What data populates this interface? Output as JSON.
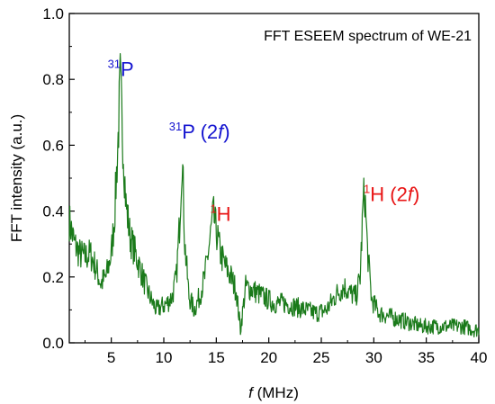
{
  "chart_data": {
    "type": "line",
    "title": "FFT ESEEM spectrum of WE-21",
    "xlabel": {
      "italic": "f",
      "rest": " (MHz)"
    },
    "ylabel": "FFT intensity (a.u.)",
    "xlim": [
      1,
      40
    ],
    "ylim": [
      0,
      1.0
    ],
    "x_ticks": [
      5,
      10,
      15,
      20,
      25,
      30,
      35,
      40
    ],
    "x_tick_labels": [
      "5",
      "10",
      "15",
      "20",
      "25",
      "30",
      "35",
      "40"
    ],
    "y_ticks": [
      0.0,
      0.2,
      0.4,
      0.6,
      0.8,
      1.0
    ],
    "y_tick_labels": [
      "0.0",
      "0.2",
      "0.4",
      "0.6",
      "0.8",
      "1.0"
    ],
    "grid": false,
    "legend": "none",
    "series": [
      {
        "color": "#1a7a1a",
        "baseline": [
          [
            1.0,
            0.37
          ],
          [
            1.5,
            0.3
          ],
          [
            2.0,
            0.27
          ],
          [
            2.5,
            0.26
          ],
          [
            3.0,
            0.27
          ],
          [
            3.5,
            0.23
          ],
          [
            4.0,
            0.18
          ],
          [
            4.5,
            0.2
          ],
          [
            5.0,
            0.27
          ],
          [
            5.3,
            0.38
          ],
          [
            5.6,
            0.58
          ],
          [
            5.85,
            0.79
          ],
          [
            6.1,
            0.62
          ],
          [
            6.4,
            0.42
          ],
          [
            6.8,
            0.32
          ],
          [
            7.3,
            0.27
          ],
          [
            7.8,
            0.22
          ],
          [
            8.3,
            0.17
          ],
          [
            8.8,
            0.13
          ],
          [
            9.3,
            0.1
          ],
          [
            9.8,
            0.11
          ],
          [
            10.3,
            0.12
          ],
          [
            10.8,
            0.14
          ],
          [
            11.2,
            0.2
          ],
          [
            11.5,
            0.36
          ],
          [
            11.75,
            0.58
          ],
          [
            12.0,
            0.3
          ],
          [
            12.4,
            0.14
          ],
          [
            12.9,
            0.1
          ],
          [
            13.4,
            0.14
          ],
          [
            13.9,
            0.2
          ],
          [
            14.3,
            0.29
          ],
          [
            14.7,
            0.39
          ],
          [
            15.0,
            0.34
          ],
          [
            15.4,
            0.27
          ],
          [
            15.9,
            0.23
          ],
          [
            16.4,
            0.2
          ],
          [
            16.9,
            0.16
          ],
          [
            17.3,
            0.04
          ],
          [
            17.8,
            0.17
          ],
          [
            18.5,
            0.16
          ],
          [
            19.5,
            0.14
          ],
          [
            20.5,
            0.12
          ],
          [
            21.5,
            0.12
          ],
          [
            22.5,
            0.11
          ],
          [
            23.5,
            0.1
          ],
          [
            24.5,
            0.09
          ],
          [
            25.5,
            0.1
          ],
          [
            26.5,
            0.15
          ],
          [
            27.2,
            0.17
          ],
          [
            27.8,
            0.15
          ],
          [
            28.3,
            0.14
          ],
          [
            28.7,
            0.2
          ],
          [
            29.0,
            0.43
          ],
          [
            29.15,
            0.45
          ],
          [
            29.4,
            0.28
          ],
          [
            29.8,
            0.13
          ],
          [
            30.5,
            0.09
          ],
          [
            31.5,
            0.08
          ],
          [
            32.5,
            0.07
          ],
          [
            33.5,
            0.06
          ],
          [
            34.5,
            0.05
          ],
          [
            35.5,
            0.05
          ],
          [
            36.5,
            0.05
          ],
          [
            37.5,
            0.05
          ],
          [
            38.5,
            0.05
          ],
          [
            39.5,
            0.04
          ],
          [
            40.0,
            0.04
          ]
        ]
      }
    ],
    "annotations": [
      {
        "pre": "",
        "sup": "31",
        "main": "P",
        "italic": "",
        "post": "",
        "color": "#1515d0",
        "x": 5.9,
        "y": 0.81
      },
      {
        "pre": "",
        "sup": "31",
        "main": "P (2",
        "italic": "f",
        "post": ")",
        "color": "#1515d0",
        "x": 13.4,
        "y": 0.62
      },
      {
        "pre": "",
        "sup": "1",
        "main": "H",
        "italic": "",
        "post": "",
        "color": "#e81515",
        "x": 15.4,
        "y": 0.37
      },
      {
        "pre": "",
        "sup": "1",
        "main": "H (2",
        "italic": "f",
        "post": ")",
        "color": "#e81515",
        "x": 31.7,
        "y": 0.43
      }
    ]
  }
}
